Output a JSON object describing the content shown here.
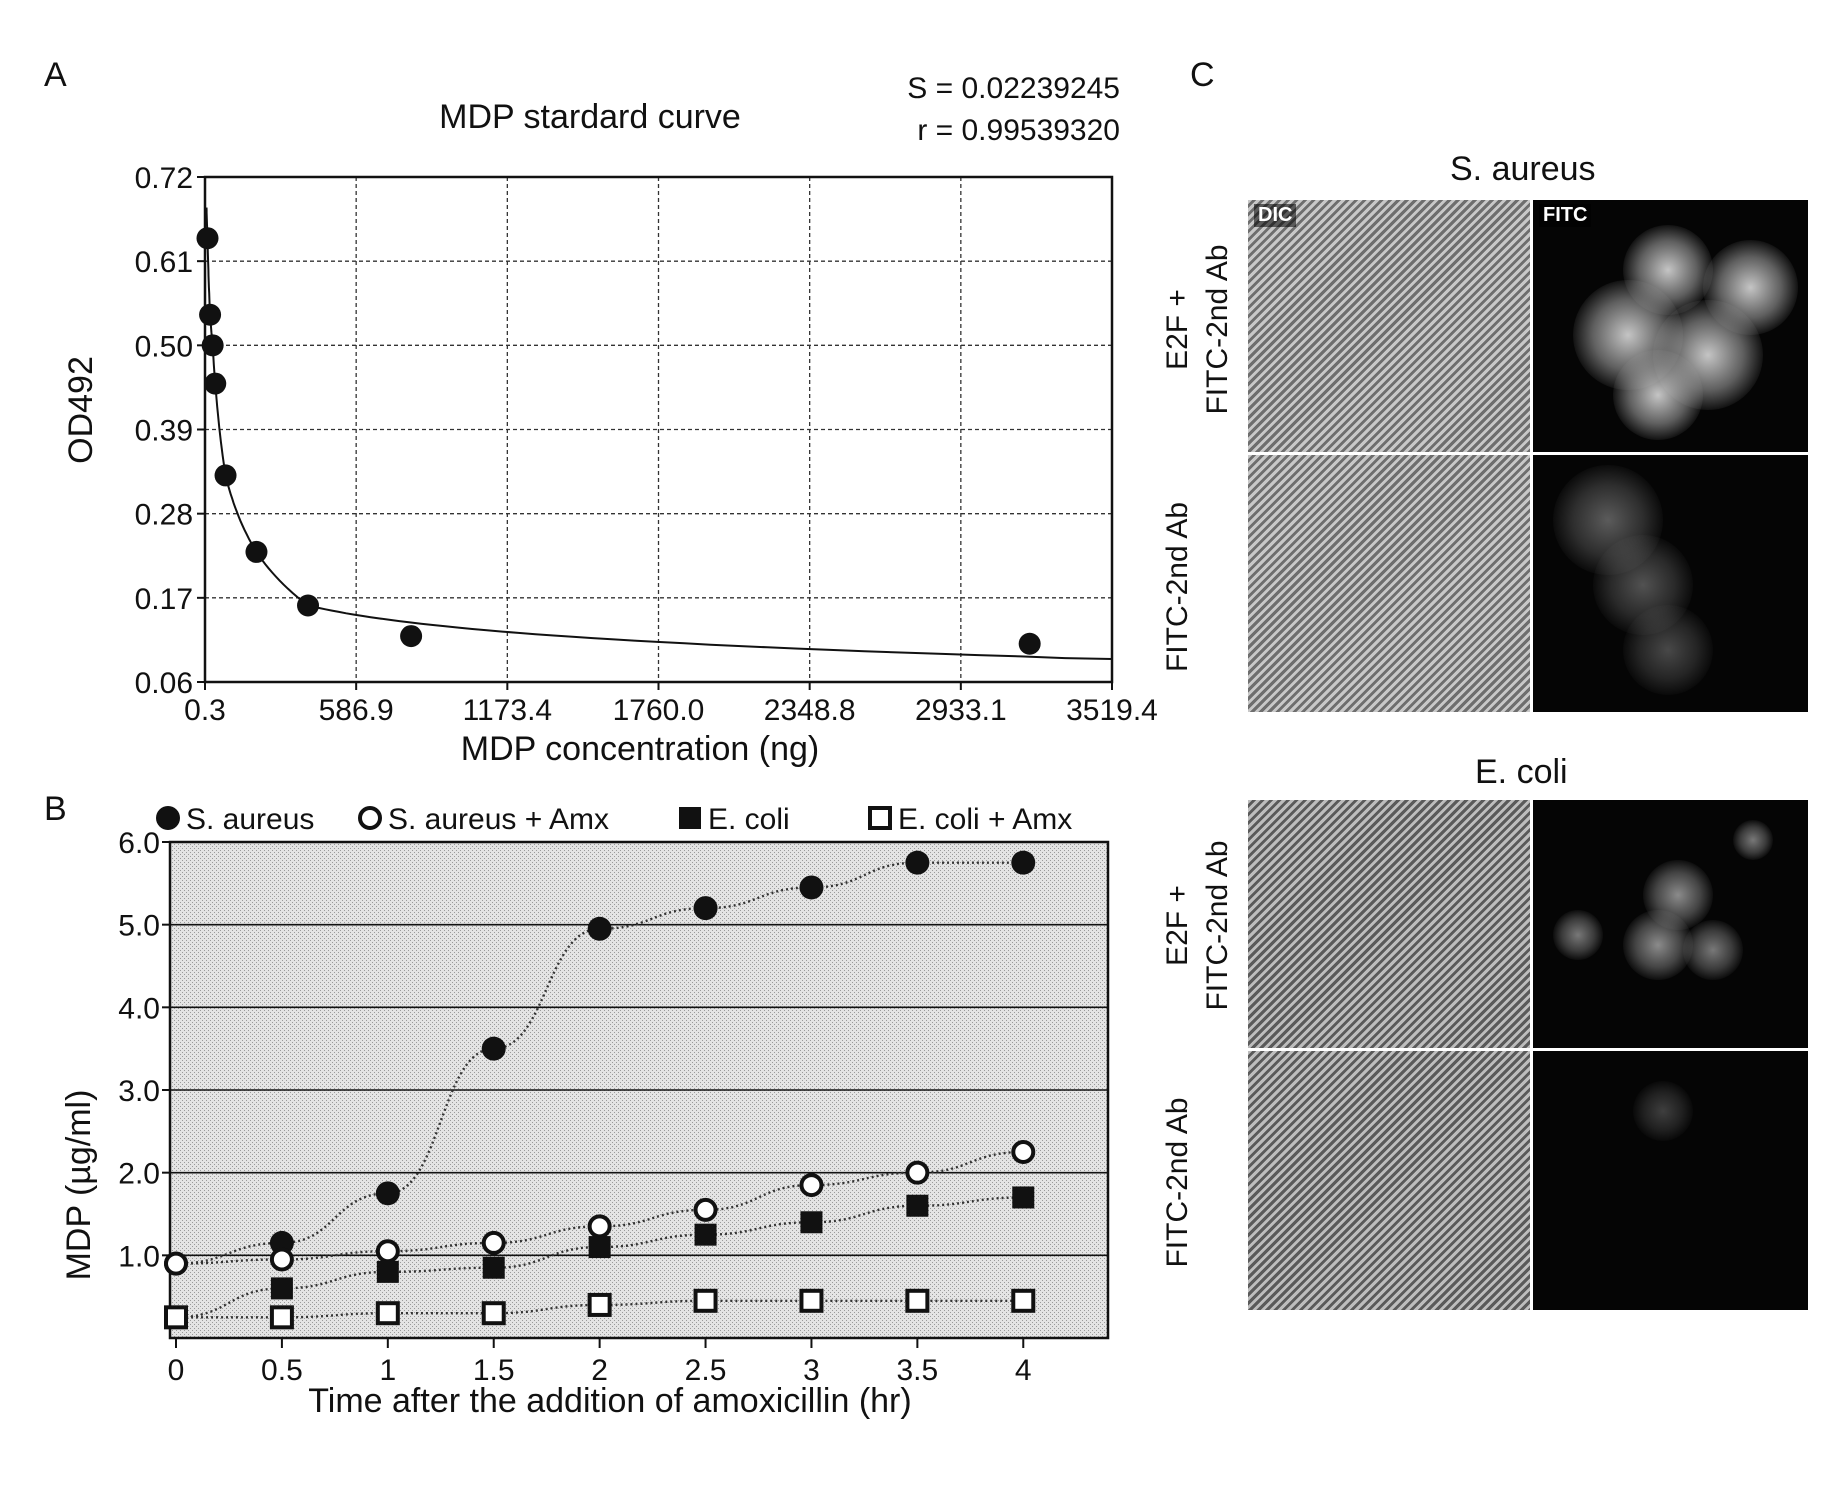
{
  "panels": {
    "a": "A",
    "b": "B",
    "c": "C"
  },
  "chart_data": [
    {
      "type": "scatter",
      "title": "MDP stardard curve",
      "stats": {
        "s": "S = 0.02239245",
        "r": "r = 0.99539320"
      },
      "xlabel": "MDP concentration (ng)",
      "ylabel": "OD492",
      "xlim": [
        0.3,
        3519.4
      ],
      "ylim": [
        0.06,
        0.72
      ],
      "x_ticks": [
        "0.3",
        "586.9",
        "1173.4",
        "1760.0",
        "2348.8",
        "2933.1",
        "3519.4"
      ],
      "y_ticks": [
        "0.06",
        "0.17",
        "0.28",
        "0.39",
        "0.50",
        "0.61",
        "0.72"
      ],
      "grid": true,
      "points": {
        "x": [
          10,
          20,
          30,
          40,
          80,
          200,
          400,
          800,
          3200
        ],
        "y": [
          0.64,
          0.54,
          0.5,
          0.45,
          0.33,
          0.23,
          0.16,
          0.12,
          0.11
        ]
      },
      "fit_curve": true
    },
    {
      "type": "line",
      "xlabel": "Time after the addition of amoxicillin (hr)",
      "ylabel": "MDP (µg/ml)",
      "xlim": [
        0,
        4.4
      ],
      "ylim": [
        0,
        6.0
      ],
      "x_ticks": [
        "0",
        "0.5",
        "1",
        "1.5",
        "2",
        "2.5",
        "3",
        "3.5",
        "4"
      ],
      "y_ticks": [
        "1.0",
        "2.0",
        "3.0",
        "4.0",
        "5.0",
        "6.0"
      ],
      "grid": true,
      "legend_position": "top",
      "series": [
        {
          "name": "S. aureus",
          "marker": "filled-circle",
          "x": [
            0,
            0.5,
            1,
            1.5,
            2,
            2.5,
            3,
            3.5,
            4
          ],
          "y": [
            0.9,
            1.15,
            1.75,
            3.5,
            4.95,
            5.2,
            5.45,
            5.75,
            5.75
          ]
        },
        {
          "name": "S. aureus + Amx",
          "marker": "open-circle",
          "x": [
            0,
            0.5,
            1,
            1.5,
            2,
            2.5,
            3,
            3.5,
            4
          ],
          "y": [
            0.9,
            0.95,
            1.05,
            1.15,
            1.35,
            1.55,
            1.85,
            2.0,
            2.25
          ]
        },
        {
          "name": "E. coli",
          "marker": "filled-square",
          "x": [
            0,
            0.5,
            1,
            1.5,
            2,
            2.5,
            3,
            3.5,
            4
          ],
          "y": [
            0.25,
            0.6,
            0.8,
            0.85,
            1.1,
            1.25,
            1.4,
            1.6,
            1.7
          ]
        },
        {
          "name": "E. coli + Amx",
          "marker": "open-square",
          "x": [
            0,
            0.5,
            1,
            1.5,
            2,
            2.5,
            3,
            3.5,
            4
          ],
          "y": [
            0.25,
            0.25,
            0.3,
            0.3,
            0.4,
            0.45,
            0.45,
            0.45,
            0.45
          ]
        }
      ]
    }
  ],
  "panel_c": {
    "groups": [
      {
        "title": "S. aureus",
        "channels": [
          "DIC",
          "FITC"
        ],
        "rows": [
          {
            "line1": "E2F +",
            "line2": "FITC-2nd Ab"
          },
          {
            "line1": "",
            "line2": "FITC-2nd Ab"
          }
        ]
      },
      {
        "title": "E. coli",
        "channels": [
          "",
          ""
        ],
        "rows": [
          {
            "line1": "E2F +",
            "line2": "FITC-2nd Ab"
          },
          {
            "line1": "",
            "line2": "FITC-2nd Ab"
          }
        ]
      }
    ]
  }
}
